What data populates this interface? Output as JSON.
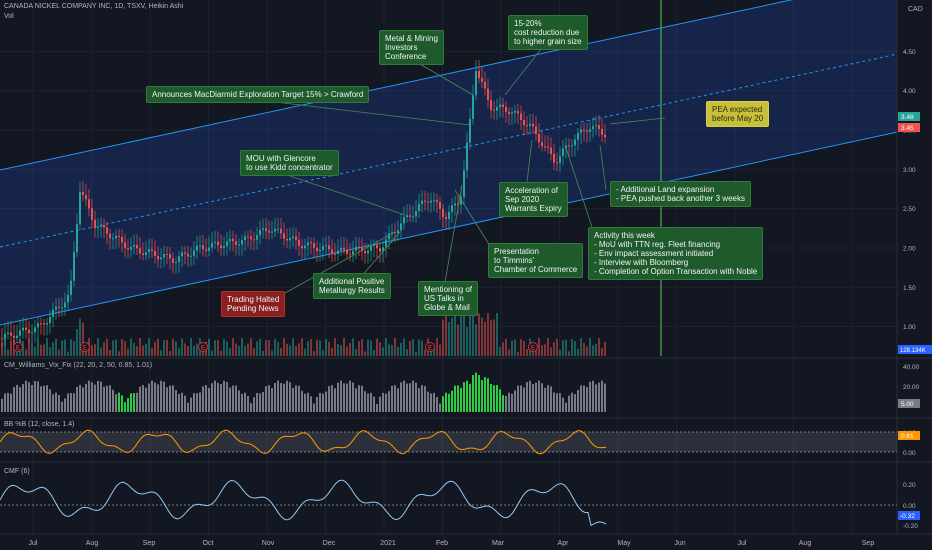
{
  "header": {
    "title": "CANADA NICKEL COMPANY INC, 1D, TSXV, Heikin Ashi",
    "vol_label": "Vol",
    "currency": "CAD"
  },
  "price_axis": {
    "ticks": [
      "4.50",
      "4.00",
      "3.50",
      "3.00",
      "2.50",
      "2.00",
      "1.50",
      "1.00"
    ],
    "tag_a": "3.48",
    "tag_b": "3.45",
    "vol_tag": "128.134K"
  },
  "time_axis": [
    "Jul",
    "Aug",
    "Sep",
    "Oct",
    "Nov",
    "Dec",
    "2021",
    "Feb",
    "Mar",
    "Apr",
    "May",
    "Jun",
    "Jul",
    "Aug",
    "Sep"
  ],
  "annotations": [
    {
      "id": "mou",
      "text": "MOU with Glencore\nto use Kidd concentrator",
      "style": "green"
    },
    {
      "id": "macdiarmid",
      "text": "Announces MacDiarmid Exploration Target 15% > Crawford",
      "style": "green"
    },
    {
      "id": "metal",
      "text": "Metal & Mining\nInvestors\nConference",
      "style": "green"
    },
    {
      "id": "cost",
      "text": "15-20%\ncost reduction due\nto higher grain size",
      "style": "green"
    },
    {
      "id": "pea",
      "text": "PEA expected\nbefore May 20",
      "style": "yellow"
    },
    {
      "id": "accel",
      "text": "Acceleration of\nSep 2020\nWarrants Expiry",
      "style": "green"
    },
    {
      "id": "land",
      "text": "- Additional Land expansion\n- PEA pushed back another 3 weeks",
      "style": "green"
    },
    {
      "id": "presentation",
      "text": "Presentation\nto Timmins'\nChamber of Commerce",
      "style": "green"
    },
    {
      "id": "activity",
      "text": "Activity this week\n- MoU with TTN reg. Fleet financing\n- Env impact assessment initiated\n- Interview with Bloomberg\n- Completion of Option Transaction with Noble",
      "style": "green"
    },
    {
      "id": "halted",
      "text": "Trading Halted\nPending News",
      "style": "red"
    },
    {
      "id": "metallurgy",
      "text": "Additional Positive\nMetallurgy Results",
      "style": "green"
    },
    {
      "id": "mentioning",
      "text": "Mentioning of\nUS Talks in\nGlobe & Mail",
      "style": "green"
    }
  ],
  "indicators": {
    "vix": {
      "label": "CM_Williams_Vix_Fix (22, 20, 2, 50, 0.85, 1.01)",
      "ticks": [
        "40.00",
        "20.00"
      ],
      "tag": "5.00"
    },
    "bb": {
      "label": "BB %B (12, close, 1.4)",
      "ticks": [
        "1.00",
        "0.00"
      ],
      "tag": "0.61"
    },
    "cmf": {
      "label": "CMF (6)",
      "ticks": [
        "0.20",
        "0.00",
        "-0.20"
      ],
      "tag": "-0.32"
    }
  },
  "colors": {
    "up": "#26a69a",
    "down": "#ef5350",
    "channel": "#2962ff",
    "vix_hi": "#2ecc40",
    "bb_line": "#ff9800",
    "cmf_line": "#90caf9",
    "marker_line": "#4caf50"
  },
  "chart_data": {
    "type": "candlestick",
    "title": "CANADA NICKEL COMPANY INC, 1D, TSXV, Heikin Ashi",
    "yunit": "CAD",
    "ylim": [
      0.6,
      4.9
    ],
    "series": [
      {
        "name": "price",
        "points": [
          [
            "Jul",
            0.9
          ],
          [
            "Aug",
            1.3
          ],
          [
            "Aug",
            2.7
          ],
          [
            "Sep",
            1.9
          ],
          [
            "Oct",
            2.3
          ],
          [
            "Nov",
            2.1
          ],
          [
            "Dec",
            1.95
          ],
          [
            "2021",
            2.1
          ],
          [
            "Feb",
            2.5
          ],
          [
            "Feb",
            4.3
          ],
          [
            "Mar",
            3.6
          ],
          [
            "Apr",
            3.2
          ],
          [
            "Apr",
            3.45
          ]
        ]
      }
    ],
    "last_values": [
      3.48,
      3.45
    ],
    "volume_last": "128.134K",
    "grid": true
  }
}
